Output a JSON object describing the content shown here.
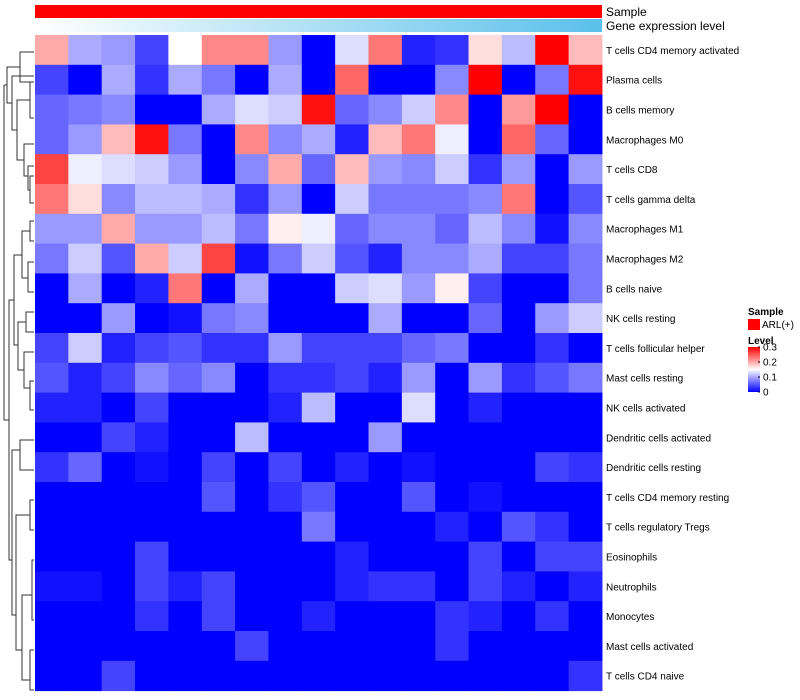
{
  "chart_data": {
    "type": "heatmap",
    "title": "",
    "annotation_tracks": [
      {
        "name": "Sample",
        "color": "#ff0000"
      },
      {
        "name": "Gene expression level",
        "gradient": [
          "#ffffff",
          "#5bc0eb"
        ]
      }
    ],
    "rows": [
      "T cells CD4 memory activated",
      "Plasma cells",
      "B cells memory",
      "Macrophages M0",
      "T cells CD8",
      "T cells gamma delta",
      "Macrophages M1",
      "Macrophages M2",
      "B cells naive",
      "NK cells resting",
      "T cells follicular helper",
      "Mast cells resting",
      "NK cells activated",
      "Dendritic cells activated",
      "Dendritic cells resting",
      "T cells CD4 memory resting",
      "T cells regulatory  Tregs",
      "Eosinophils",
      "Neutrophils",
      "Monocytes",
      "Mast cells activated",
      "T cells CD4 naive"
    ],
    "n_columns": 17,
    "color_scale": {
      "min": 0,
      "mid": 0.15,
      "max": 0.3,
      "low": "#0000ff",
      "mid_color": "#ffffff",
      "high": "#ff0000"
    },
    "values": [
      [
        0.2,
        0.1,
        0.09,
        0.04,
        0.15,
        0.22,
        0.22,
        0.09,
        0.0,
        0.13,
        0.23,
        0.02,
        0.03,
        0.17,
        0.11,
        0.3,
        0.19
      ],
      [
        0.04,
        0.0,
        0.1,
        0.03,
        0.1,
        0.07,
        0.0,
        0.1,
        0.0,
        0.24,
        0.0,
        0.0,
        0.08,
        0.3,
        0.0,
        0.07,
        0.29
      ],
      [
        0.06,
        0.07,
        0.08,
        0.0,
        0.0,
        0.1,
        0.13,
        0.12,
        0.29,
        0.06,
        0.08,
        0.12,
        0.22,
        0.0,
        0.21,
        0.3,
        0.0
      ],
      [
        0.06,
        0.09,
        0.19,
        0.29,
        0.07,
        0.0,
        0.22,
        0.08,
        0.1,
        0.02,
        0.19,
        0.23,
        0.14,
        0.0,
        0.24,
        0.06,
        0.0
      ],
      [
        0.26,
        0.14,
        0.13,
        0.12,
        0.09,
        0.0,
        0.08,
        0.2,
        0.06,
        0.19,
        0.09,
        0.08,
        0.12,
        0.03,
        0.09,
        0.0,
        0.09
      ],
      [
        0.23,
        0.17,
        0.08,
        0.11,
        0.11,
        0.1,
        0.03,
        0.09,
        0.0,
        0.12,
        0.07,
        0.07,
        0.07,
        0.08,
        0.23,
        0.0,
        0.05
      ],
      [
        0.09,
        0.09,
        0.2,
        0.09,
        0.09,
        0.11,
        0.07,
        0.16,
        0.14,
        0.06,
        0.08,
        0.08,
        0.06,
        0.11,
        0.08,
        0.01,
        0.08
      ],
      [
        0.07,
        0.12,
        0.05,
        0.2,
        0.12,
        0.26,
        0.01,
        0.07,
        0.12,
        0.05,
        0.02,
        0.08,
        0.08,
        0.1,
        0.04,
        0.04,
        0.07
      ],
      [
        0.0,
        0.1,
        0.0,
        0.02,
        0.23,
        0.0,
        0.1,
        0.0,
        0.0,
        0.12,
        0.13,
        0.09,
        0.16,
        0.04,
        0.0,
        0.0,
        0.07
      ],
      [
        0.0,
        0.0,
        0.09,
        0.0,
        0.01,
        0.07,
        0.08,
        0.0,
        0.0,
        0.0,
        0.1,
        0.0,
        0.0,
        0.06,
        0.0,
        0.09,
        0.12
      ],
      [
        0.04,
        0.12,
        0.02,
        0.04,
        0.05,
        0.03,
        0.03,
        0.09,
        0.04,
        0.04,
        0.04,
        0.06,
        0.07,
        0.0,
        0.0,
        0.03,
        0.0
      ],
      [
        0.05,
        0.02,
        0.04,
        0.08,
        0.06,
        0.08,
        0.0,
        0.03,
        0.03,
        0.04,
        0.02,
        0.09,
        0.0,
        0.09,
        0.03,
        0.05,
        0.07
      ],
      [
        0.02,
        0.02,
        0.0,
        0.04,
        0.0,
        0.0,
        0.0,
        0.02,
        0.11,
        0.0,
        0.0,
        0.13,
        0.0,
        0.02,
        0.0,
        0.0,
        0.0
      ],
      [
        0.0,
        0.0,
        0.04,
        0.02,
        0.0,
        0.0,
        0.11,
        0.0,
        0.0,
        0.0,
        0.09,
        0.0,
        0.0,
        0.0,
        0.0,
        0.0,
        0.0
      ],
      [
        0.03,
        0.06,
        0.0,
        0.01,
        0.0,
        0.04,
        0.0,
        0.04,
        0.0,
        0.02,
        0.0,
        0.01,
        0.0,
        0.0,
        0.0,
        0.04,
        0.03
      ],
      [
        0.0,
        0.0,
        0.0,
        0.0,
        0.0,
        0.05,
        0.0,
        0.03,
        0.05,
        0.0,
        0.0,
        0.05,
        0.0,
        0.01,
        0.0,
        0.0,
        0.0
      ],
      [
        0.0,
        0.0,
        0.0,
        0.0,
        0.0,
        0.0,
        0.0,
        0.0,
        0.07,
        0.0,
        0.0,
        0.0,
        0.02,
        0.0,
        0.05,
        0.03,
        0.0
      ],
      [
        0.0,
        0.0,
        0.0,
        0.04,
        0.0,
        0.0,
        0.0,
        0.0,
        0.0,
        0.02,
        0.0,
        0.0,
        0.0,
        0.04,
        0.0,
        0.04,
        0.04
      ],
      [
        0.01,
        0.01,
        0.0,
        0.04,
        0.02,
        0.04,
        0.0,
        0.0,
        0.0,
        0.02,
        0.03,
        0.03,
        0.0,
        0.04,
        0.02,
        0.0,
        0.02
      ],
      [
        0.0,
        0.0,
        0.0,
        0.03,
        0.0,
        0.04,
        0.0,
        0.0,
        0.02,
        0.0,
        0.0,
        0.0,
        0.03,
        0.02,
        0.0,
        0.03,
        0.0
      ],
      [
        0.0,
        0.0,
        0.0,
        0.0,
        0.0,
        0.0,
        0.04,
        0.0,
        0.0,
        0.0,
        0.0,
        0.0,
        0.03,
        0.0,
        0.0,
        0.0,
        0.0
      ],
      [
        0.0,
        0.0,
        0.04,
        0.0,
        0.0,
        0.0,
        0.0,
        0.0,
        0.0,
        0.0,
        0.0,
        0.0,
        0.0,
        0.0,
        0.0,
        0.0,
        0.03
      ]
    ],
    "legend": {
      "sample_title": "Sample",
      "sample_entry": "ARL(+)",
      "level_title": "Level",
      "level_ticks": [
        {
          "value": 0.3,
          "label": "0.3"
        },
        {
          "value": 0.2,
          "label": "0.2"
        },
        {
          "value": 0.1,
          "label": "0.1"
        },
        {
          "value": 0,
          "label": "0"
        }
      ]
    }
  }
}
